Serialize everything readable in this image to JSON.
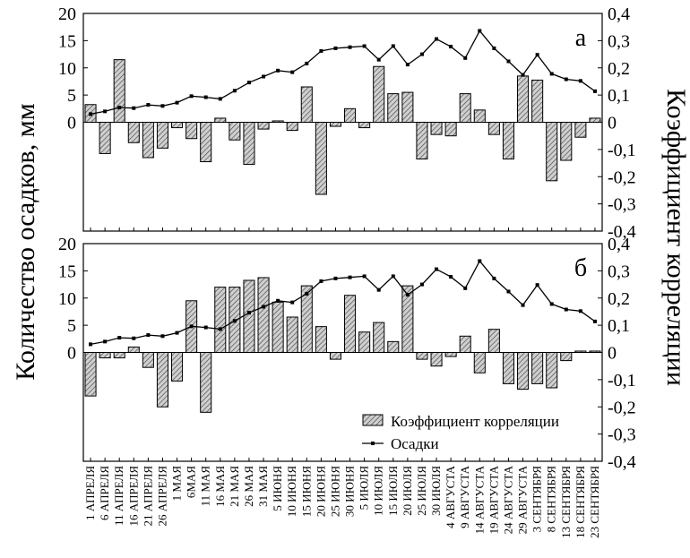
{
  "chart_data": {
    "type": "bar",
    "categories": [
      "1 АПРЕЛЯ",
      "6 АПРЕЛЯ",
      "11 АПРЕЛЯ",
      "16 АПРЕЛЯ",
      "21 АПРЕЛЯ",
      "26 АПРЕЛЯ",
      "1 МАЯ",
      "6МАЯ",
      "11 МАЯ",
      "16 МАЯ",
      "21 МАЯ",
      "26 МАЯ",
      "31 МАЯ",
      "5 ИЮНЯ",
      "10 ИЮНЯ",
      "15 ИЮНЯ",
      "20 ИЮНЯ",
      "25 ИЮНЯ",
      "30 ИЮНЯ",
      "5 ИЮЛЯ",
      "10 ИЮЛЯ",
      "15 ИЮЛЯ",
      "20 ИЮЛЯ",
      "25 ИЮЛЯ",
      "30 ИЮЛЯ",
      "4 АВГУСТА",
      "9 АВГУСТА",
      "14 АВГУСТА",
      "19 АВГУСТА",
      "24 АВГУСТА",
      "29 АВГУСТА",
      "3 СЕНТЯБРЯ",
      "8 СЕНТЯБРЯ",
      "13 СЕНТЯБРЯ",
      "18 СЕНТЯБРЯ",
      "23 СЕНТЯБРЯ"
    ],
    "ylabel": "Количество осадков, мм",
    "y2label": "Коэффициент корреляции",
    "ylim": [
      -20,
      20
    ],
    "y2lim": [
      -0.4,
      0.4
    ],
    "yticks": [
      0,
      5,
      10,
      15,
      20
    ],
    "y2ticks": [
      "0,4",
      "0,3",
      "0,2",
      "0,1",
      "0",
      "-0,1",
      "-0,2",
      "-0,3",
      "-0,4"
    ],
    "y2tick_values": [
      0.4,
      0.3,
      0.2,
      0.1,
      0,
      -0.1,
      -0.2,
      -0.3,
      -0.4
    ],
    "precip": [
      1.5,
      2.0,
      2.7,
      2.6,
      3.2,
      3.0,
      3.6,
      4.8,
      4.6,
      4.3,
      5.8,
      7.3,
      8.4,
      9.5,
      9.2,
      10.8,
      13.1,
      13.6,
      13.8,
      14.0,
      11.5,
      14.0,
      10.6,
      12.5,
      15.3,
      13.9,
      11.8,
      16.8,
      13.6,
      11.2,
      8.7,
      12.4,
      8.9,
      7.9,
      7.6,
      5.7
    ],
    "panels": [
      {
        "label": "а",
        "correlation": [
          0.065,
          -0.115,
          0.23,
          -0.075,
          -0.13,
          -0.095,
          -0.02,
          -0.06,
          -0.145,
          0.015,
          -0.065,
          -0.155,
          -0.025,
          0.005,
          -0.03,
          0.13,
          -0.265,
          -0.015,
          0.05,
          -0.02,
          0.205,
          0.105,
          0.11,
          -0.135,
          -0.045,
          -0.05,
          0.105,
          0.045,
          -0.045,
          -0.135,
          0.17,
          0.155,
          -0.215,
          -0.14,
          -0.055,
          0.015
        ]
      },
      {
        "label": "б",
        "correlation": [
          -0.16,
          -0.02,
          -0.02,
          0.02,
          -0.055,
          -0.2,
          -0.105,
          0.19,
          -0.22,
          0.24,
          0.24,
          0.265,
          0.275,
          0.185,
          0.13,
          0.245,
          0.095,
          -0.025,
          0.21,
          0.075,
          0.11,
          0.04,
          0.245,
          -0.025,
          -0.05,
          -0.015,
          0.06,
          -0.075,
          0.085,
          -0.115,
          -0.135,
          -0.115,
          -0.13,
          -0.03,
          0.005,
          0.005
        ]
      }
    ],
    "legend": {
      "placement": "bottom-right of lower panel",
      "entries": [
        {
          "name": "Коэффициент корреляции",
          "kind": "hatched-bar"
        },
        {
          "name": "Осадки",
          "kind": "line-with-markers"
        }
      ]
    },
    "grid": false,
    "colors": {
      "bar_fill": "#cfcfcf",
      "bar_hatch": "#444444",
      "line": "#000000"
    }
  }
}
